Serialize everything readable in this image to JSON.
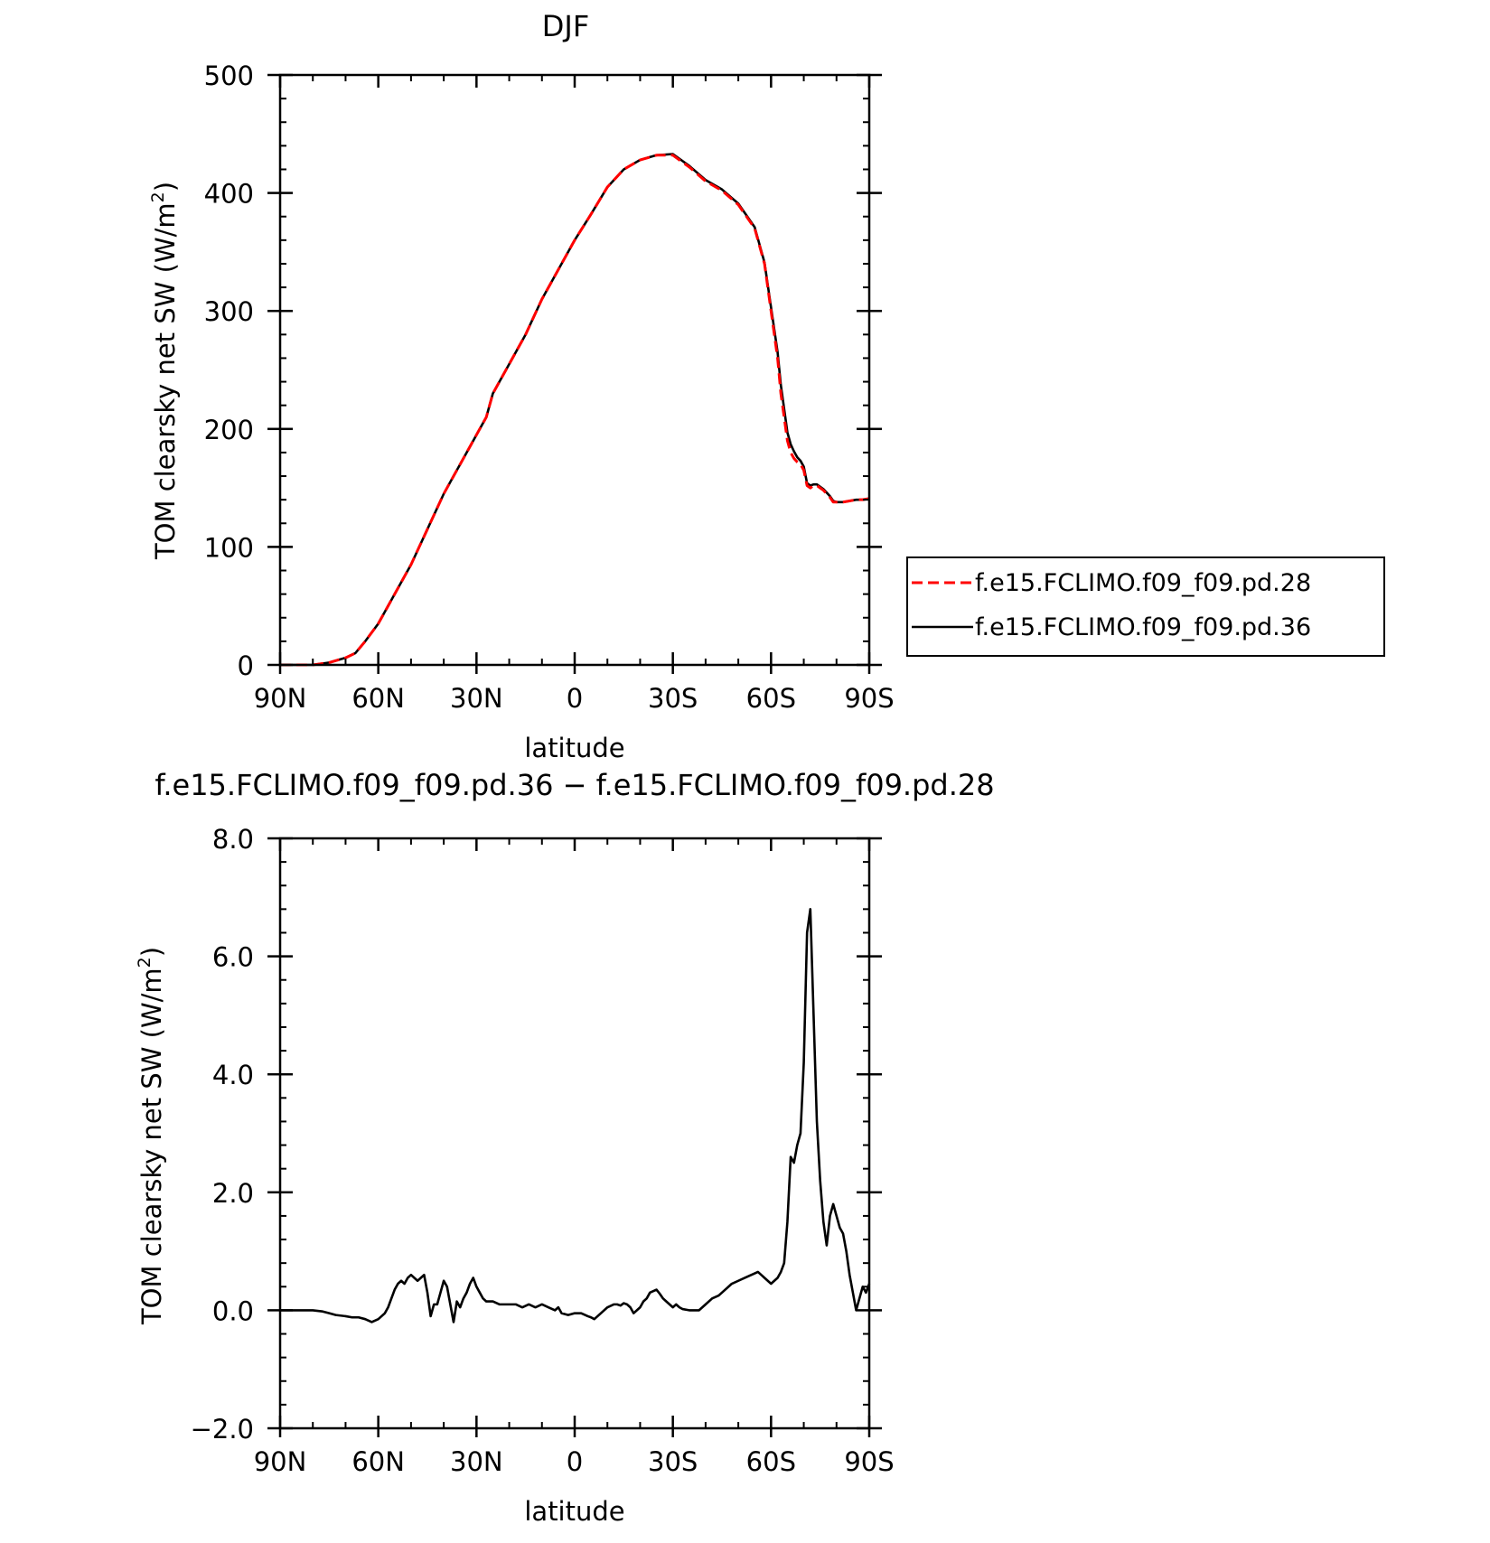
{
  "chart_data": [
    {
      "type": "line",
      "title": "DJF",
      "xlabel": "latitude",
      "ylabel": "TOM clearsky net SW (W/m²)",
      "ylabel_main": "TOM clearsky net SW (W/m",
      "ylabel_sup": "2",
      "ylabel_end": ")",
      "xlim": [
        90,
        -90
      ],
      "ylim": [
        0,
        500
      ],
      "x_ticks": [
        90,
        60,
        30,
        0,
        -30,
        -60,
        -90
      ],
      "x_tick_labels": [
        "90N",
        "60N",
        "30N",
        "0",
        "30S",
        "60S",
        "90S"
      ],
      "y_ticks": [
        0,
        100,
        200,
        300,
        400,
        500
      ],
      "y_tick_labels": [
        "0",
        "100",
        "200",
        "300",
        "400",
        "500"
      ],
      "grid": false,
      "legend_position": "right",
      "series": [
        {
          "name": "f.e15.FCLIMO.f09_f09.pd.28",
          "color": "#ff0000",
          "dash": "dashed",
          "x": [
            90,
            80,
            75,
            70,
            67,
            64,
            60,
            55,
            50,
            45,
            40,
            37,
            35,
            30,
            27,
            25,
            20,
            15,
            10,
            5,
            0,
            -5,
            -10,
            -15,
            -20,
            -25,
            -30,
            -35,
            -40,
            -45,
            -50,
            -55,
            -58,
            -60,
            -62,
            -63,
            -64,
            -65,
            -66,
            -67,
            -68,
            -69,
            -70,
            -71,
            -72,
            -73,
            -74,
            -75,
            -76,
            -77,
            -78,
            -79,
            -80,
            -82,
            -84,
            -86,
            -88,
            -90
          ],
          "y": [
            0,
            0,
            2,
            6,
            10,
            20,
            35,
            60,
            85,
            115,
            145,
            160,
            170,
            195,
            210,
            230,
            255,
            280,
            310,
            335,
            360,
            382,
            405,
            420,
            428,
            432,
            432,
            422,
            410,
            402,
            390,
            370,
            340,
            300,
            260,
            230,
            210,
            190,
            180,
            175,
            172,
            170,
            165,
            152,
            150,
            152,
            152,
            150,
            148,
            145,
            142,
            138,
            138,
            138,
            139,
            140,
            140,
            141
          ]
        },
        {
          "name": "f.e15.FCLIMO.f09_f09.pd.36",
          "color": "#000000",
          "dash": "solid",
          "x": [
            90,
            80,
            75,
            70,
            67,
            64,
            60,
            55,
            50,
            45,
            40,
            37,
            35,
            30,
            27,
            25,
            20,
            15,
            10,
            5,
            0,
            -5,
            -10,
            -15,
            -20,
            -25,
            -30,
            -35,
            -40,
            -45,
            -50,
            -55,
            -58,
            -60,
            -62,
            -63,
            -64,
            -65,
            -66,
            -67,
            -68,
            -69,
            -70,
            -71,
            -72,
            -73,
            -74,
            -75,
            -76,
            -77,
            -78,
            -79,
            -80,
            -82,
            -84,
            -86,
            -88,
            -90
          ],
          "y": [
            0,
            0,
            2,
            6,
            10,
            20,
            35,
            60,
            85,
            115,
            145,
            160,
            170,
            195,
            210,
            230,
            255,
            280,
            310,
            335,
            360,
            382,
            405,
            420,
            428,
            432,
            433,
            423,
            411,
            403,
            391,
            371,
            341,
            303,
            265,
            237,
            217,
            197,
            187,
            181,
            176,
            173,
            168,
            154,
            152,
            153,
            153,
            151,
            149,
            146,
            143,
            139,
            138,
            138,
            139,
            140,
            140,
            141
          ]
        }
      ]
    },
    {
      "type": "line",
      "title": "f.e15.FCLIMO.f09_f09.pd.36 − f.e15.FCLIMO.f09_f09.pd.28",
      "xlabel": "latitude",
      "ylabel": "TOM clearsky net SW (W/m²)",
      "ylabel_main": "TOM clearsky net SW (W/m",
      "ylabel_sup": "2",
      "ylabel_end": ")",
      "xlim": [
        90,
        -90
      ],
      "ylim": [
        -2,
        8
      ],
      "x_ticks": [
        90,
        60,
        30,
        0,
        -30,
        -60,
        -90
      ],
      "x_tick_labels": [
        "90N",
        "60N",
        "30N",
        "0",
        "30S",
        "60S",
        "90S"
      ],
      "y_ticks": [
        -2,
        0,
        2,
        4,
        6,
        8
      ],
      "y_tick_labels": [
        "−2.0",
        "0.0",
        "2.0",
        "4.0",
        "6.0",
        "8.0"
      ],
      "grid": false,
      "series": [
        {
          "name": "",
          "color": "#000000",
          "dash": "solid",
          "x": [
            90,
            80,
            77,
            75,
            73,
            70,
            68,
            66,
            64,
            62,
            60,
            58,
            57,
            56,
            55,
            54,
            53,
            52,
            51,
            50,
            49,
            48,
            47,
            46,
            45,
            44,
            43,
            42,
            41,
            40,
            39,
            38,
            37,
            36,
            35,
            34,
            33,
            32,
            31,
            30,
            29,
            28,
            27,
            25,
            23,
            20,
            18,
            16,
            14,
            12,
            10,
            8,
            6,
            5,
            4,
            2,
            0,
            -2,
            -4,
            -5,
            -6,
            -8,
            -10,
            -12,
            -13,
            -14,
            -15,
            -16,
            -17,
            -18,
            -20,
            -21,
            -22,
            -23,
            -25,
            -26,
            -27,
            -28,
            -29,
            -30,
            -31,
            -32,
            -33,
            -35,
            -38,
            -40,
            -42,
            -44,
            -46,
            -48,
            -50,
            -52,
            -54,
            -56,
            -57,
            -58,
            -60,
            -62,
            -63,
            -64,
            -65,
            -66,
            -67,
            -68,
            -69,
            -70,
            -71,
            -72,
            -73,
            -74,
            -75,
            -76,
            -77,
            -78,
            -79,
            -80,
            -81,
            -82,
            -83,
            -84,
            -85,
            -86,
            -87,
            -88,
            -89,
            -90
          ],
          "y": [
            0,
            0,
            -0.02,
            -0.05,
            -0.08,
            -0.1,
            -0.12,
            -0.12,
            -0.15,
            -0.2,
            -0.15,
            -0.05,
            0.05,
            0.2,
            0.35,
            0.45,
            0.5,
            0.45,
            0.55,
            0.6,
            0.55,
            0.5,
            0.55,
            0.6,
            0.3,
            -0.1,
            0.1,
            0.1,
            0.3,
            0.5,
            0.4,
            0.1,
            -0.2,
            0.15,
            0.05,
            0.2,
            0.3,
            0.45,
            0.55,
            0.4,
            0.3,
            0.2,
            0.15,
            0.15,
            0.1,
            0.1,
            0.1,
            0.05,
            0.1,
            0.05,
            0.1,
            0.05,
            0,
            0.05,
            -0.05,
            -0.08,
            -0.05,
            -0.05,
            -0.1,
            -0.12,
            -0.15,
            -0.05,
            0.05,
            0.1,
            0.1,
            0.08,
            0.12,
            0.1,
            0.05,
            -0.05,
            0.05,
            0.15,
            0.2,
            0.3,
            0.35,
            0.28,
            0.2,
            0.15,
            0.1,
            0.05,
            0.1,
            0.05,
            0.02,
            0,
            0,
            0.1,
            0.2,
            0.25,
            0.35,
            0.45,
            0.5,
            0.55,
            0.6,
            0.65,
            0.6,
            0.55,
            0.45,
            0.55,
            0.65,
            0.8,
            1.5,
            2.6,
            2.5,
            2.8,
            3.0,
            4.2,
            6.4,
            6.8,
            5.0,
            3.2,
            2.2,
            1.5,
            1.1,
            1.6,
            1.8,
            1.6,
            1.4,
            1.3,
            1.0,
            0.6,
            0.3,
            0,
            0.2,
            0.4,
            0.3,
            0.45
          ]
        }
      ]
    }
  ]
}
